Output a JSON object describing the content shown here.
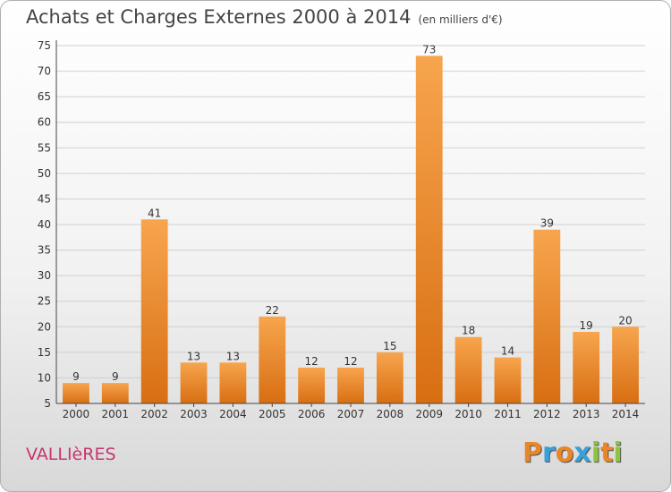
{
  "header": {
    "title": "Achats et Charges Externes 2000 à 2014",
    "subtitle": "(en milliers d'€)"
  },
  "footer": {
    "commune": "VALLIèRES",
    "brand_letters": [
      "P",
      "r",
      "o",
      "x",
      "i",
      "t",
      "i"
    ],
    "brand_colors": [
      "#e8862a",
      "#3aa0d8",
      "#e8862a",
      "#3aa0d8",
      "#8cc63f",
      "#e8862a",
      "#8cc63f"
    ]
  },
  "chart_data": {
    "type": "bar",
    "categories": [
      "2000",
      "2001",
      "2002",
      "2003",
      "2004",
      "2005",
      "2006",
      "2007",
      "2008",
      "2009",
      "2010",
      "2011",
      "2012",
      "2013",
      "2014"
    ],
    "values": [
      9,
      9,
      41,
      13,
      13,
      22,
      12,
      12,
      15,
      73,
      18,
      14,
      39,
      19,
      20
    ],
    "ylim": [
      5,
      75
    ],
    "yticks": [
      5,
      10,
      15,
      20,
      25,
      30,
      35,
      40,
      45,
      50,
      55,
      60,
      65,
      70,
      75
    ],
    "grid": true,
    "bar_color": "#f0963a",
    "title": "Achats et Charges Externes 2000 à 2014",
    "xlabel": "",
    "ylabel": ""
  }
}
